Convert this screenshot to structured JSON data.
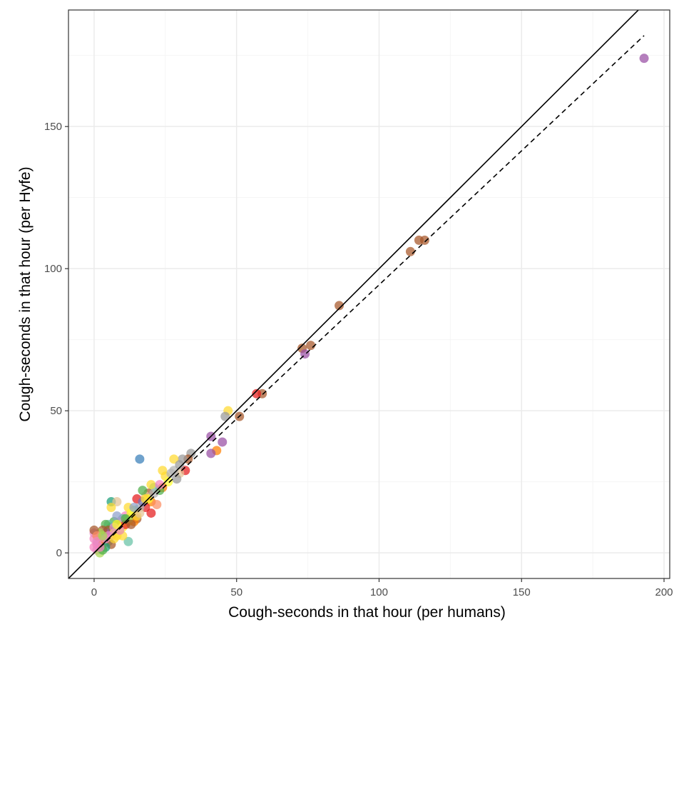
{
  "chart_data": {
    "type": "scatter",
    "title": "",
    "xlabel": "Cough-seconds in that hour (per humans)",
    "ylabel": "Cough-seconds in that hour (per Hyfe)",
    "xlim": [
      -9,
      202
    ],
    "ylim": [
      -9,
      191
    ],
    "x_ticks": [
      0,
      50,
      100,
      150,
      200
    ],
    "y_ticks": [
      0,
      50,
      100,
      150
    ],
    "grid": true,
    "legend": "none",
    "colors": {
      "identity_line": "#000000",
      "fit_line": "#000000",
      "panel_border": "#333333",
      "grid_major": "#ebebeb",
      "grid_minor": "#f5f5f5",
      "palette": [
        "#e41a1c",
        "#377eb8",
        "#4daf4a",
        "#984ea3",
        "#ff7f00",
        "#ffff33",
        "#a65628",
        "#f781bf",
        "#999999",
        "#66c2a5",
        "#fc8d62",
        "#8da0cb",
        "#e78ac3",
        "#a6d854",
        "#ffd92f",
        "#e5c494",
        "#b3b3b3",
        "#1b9e77",
        "#d95f02",
        "#7570b3"
      ]
    },
    "lines": [
      {
        "name": "identity",
        "style": "solid",
        "x": [
          -9,
          202
        ],
        "y": [
          -9,
          202
        ]
      },
      {
        "name": "fit",
        "style": "dashed",
        "x": [
          0,
          193
        ],
        "y": [
          0,
          182
        ]
      }
    ],
    "points": [
      [
        193,
        174,
        3
      ],
      [
        116,
        110,
        6
      ],
      [
        114,
        110,
        6
      ],
      [
        111,
        106,
        6
      ],
      [
        86,
        87,
        6
      ],
      [
        76,
        73,
        6
      ],
      [
        73,
        72,
        6
      ],
      [
        74,
        70,
        3
      ],
      [
        59,
        56,
        6
      ],
      [
        57,
        56,
        0
      ],
      [
        51,
        48,
        6
      ],
      [
        47,
        50,
        14
      ],
      [
        46,
        48,
        8
      ],
      [
        41,
        41,
        3
      ],
      [
        45,
        39,
        3
      ],
      [
        43,
        36,
        4
      ],
      [
        41,
        35,
        3
      ],
      [
        34,
        35,
        8
      ],
      [
        33,
        33,
        6
      ],
      [
        31,
        33,
        8
      ],
      [
        28,
        33,
        14
      ],
      [
        16,
        33,
        1
      ],
      [
        32,
        29,
        0
      ],
      [
        30,
        28,
        15
      ],
      [
        28,
        29,
        16
      ],
      [
        29,
        26,
        8
      ],
      [
        25,
        27,
        14
      ],
      [
        24,
        29,
        14
      ],
      [
        26,
        25,
        5
      ],
      [
        24,
        23,
        4
      ],
      [
        23,
        22,
        2
      ],
      [
        21,
        23,
        9
      ],
      [
        20,
        24,
        14
      ],
      [
        19,
        21,
        6
      ],
      [
        18,
        20,
        15
      ],
      [
        17,
        22,
        2
      ],
      [
        20,
        18,
        4
      ],
      [
        22,
        17,
        10
      ],
      [
        18,
        16,
        0
      ],
      [
        16,
        16,
        16
      ],
      [
        15,
        19,
        0
      ],
      [
        14,
        15,
        13
      ],
      [
        13,
        14,
        5
      ],
      [
        12,
        16,
        14
      ],
      [
        11,
        13,
        7
      ],
      [
        15,
        12,
        6
      ],
      [
        20,
        14,
        0
      ],
      [
        12,
        11,
        5
      ],
      [
        10,
        12,
        9
      ],
      [
        9,
        11,
        12
      ],
      [
        14,
        11,
        4
      ],
      [
        8,
        10,
        6
      ],
      [
        7,
        11,
        2
      ],
      [
        8,
        13,
        11
      ],
      [
        6,
        9,
        17
      ],
      [
        5,
        10,
        9
      ],
      [
        4,
        10,
        2
      ],
      [
        5,
        8,
        6
      ],
      [
        7,
        7,
        5
      ],
      [
        6,
        6,
        12
      ],
      [
        4,
        7,
        3
      ],
      [
        3,
        8,
        6
      ],
      [
        2,
        7,
        13
      ],
      [
        3,
        5,
        9
      ],
      [
        2,
        4,
        12
      ],
      [
        1,
        3,
        7
      ],
      [
        0,
        2,
        7
      ],
      [
        1,
        1,
        12
      ],
      [
        2,
        0,
        13
      ],
      [
        0,
        5,
        7
      ],
      [
        0,
        7,
        12
      ],
      [
        0,
        8,
        6
      ],
      [
        1,
        6,
        10
      ],
      [
        3,
        3,
        4
      ],
      [
        5,
        4,
        9
      ],
      [
        6,
        3,
        6
      ],
      [
        4,
        2,
        17
      ],
      [
        3,
        1,
        2
      ],
      [
        9,
        8,
        14
      ],
      [
        10,
        9,
        5
      ],
      [
        11,
        10,
        0
      ],
      [
        12,
        12,
        13
      ],
      [
        8,
        6,
        14
      ],
      [
        7,
        9,
        12
      ],
      [
        6,
        18,
        17
      ],
      [
        8,
        18,
        15
      ],
      [
        6,
        16,
        14
      ],
      [
        12,
        4,
        9
      ],
      [
        13,
        14,
        5
      ],
      [
        15,
        13,
        14
      ],
      [
        17,
        18,
        19
      ],
      [
        19,
        19,
        5
      ],
      [
        21,
        21,
        16
      ],
      [
        23,
        24,
        7
      ],
      [
        27,
        28,
        16
      ],
      [
        30,
        31,
        8
      ],
      [
        10,
        6,
        14
      ],
      [
        9,
        8,
        12
      ],
      [
        5,
        6,
        12
      ],
      [
        4,
        5,
        7
      ],
      [
        2,
        2,
        7
      ],
      [
        1,
        4,
        12
      ],
      [
        3,
        6,
        13
      ],
      [
        7,
        5,
        14
      ],
      [
        8,
        10,
        5
      ],
      [
        11,
        12,
        2
      ],
      [
        13,
        10,
        6
      ],
      [
        14,
        16,
        11
      ],
      [
        16,
        14,
        15
      ],
      [
        18,
        19,
        14
      ]
    ]
  }
}
